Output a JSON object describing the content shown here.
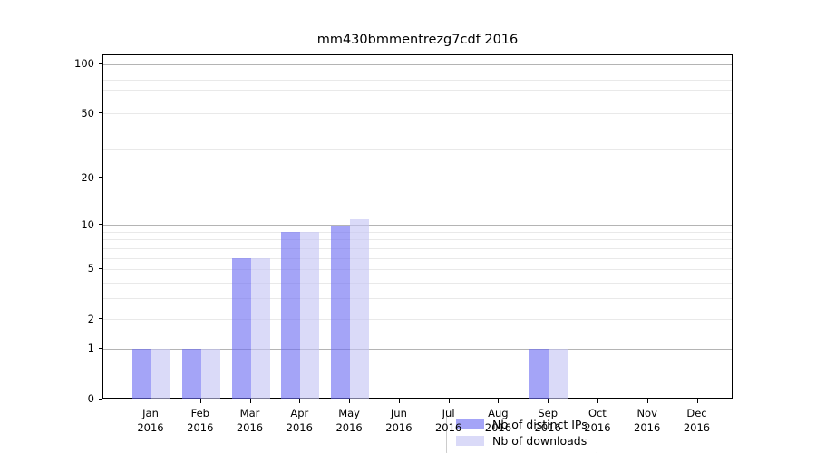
{
  "chart_data": {
    "type": "bar",
    "title": "mm430bmmentrezg7cdf 2016",
    "categories": [
      "Jan",
      "Feb",
      "Mar",
      "Apr",
      "May",
      "Jun",
      "Jul",
      "Aug",
      "Sep",
      "Oct",
      "Nov",
      "Dec"
    ],
    "x_sublabel": "2016",
    "series": [
      {
        "name": "Nb of distinct IPs",
        "color": "#a4a4f7",
        "fill": "rgba(108,108,242,0.62)",
        "values": [
          1,
          1,
          6,
          9,
          10,
          0,
          0,
          0,
          1,
          0,
          0,
          0
        ]
      },
      {
        "name": "Nb of downloads",
        "color": "#dadaf8",
        "fill": "rgba(195,195,244,0.62)",
        "values": [
          1,
          1,
          6,
          9,
          11,
          0,
          0,
          0,
          1,
          0,
          0,
          0
        ]
      }
    ],
    "xlabel": "",
    "ylabel": "",
    "y_scale": "log10(1+x)",
    "y_tick_labels": [
      100,
      50,
      20,
      10,
      5,
      2,
      1,
      0
    ],
    "y_grid_major": [
      1,
      10,
      100
    ],
    "y_grid_minor": [
      2,
      3,
      4,
      5,
      6,
      7,
      8,
      9,
      20,
      30,
      40,
      50,
      60,
      70,
      80,
      90
    ],
    "ylim": [
      0,
      113
    ],
    "grid": "on",
    "legend_position": "inside lower center",
    "colors": {
      "grid_major": "#b4b4b4",
      "grid_minor": "#e9e9e9",
      "axis_frame": "#000000",
      "legend_border": "#cccccc",
      "background": "#ffffff"
    }
  }
}
